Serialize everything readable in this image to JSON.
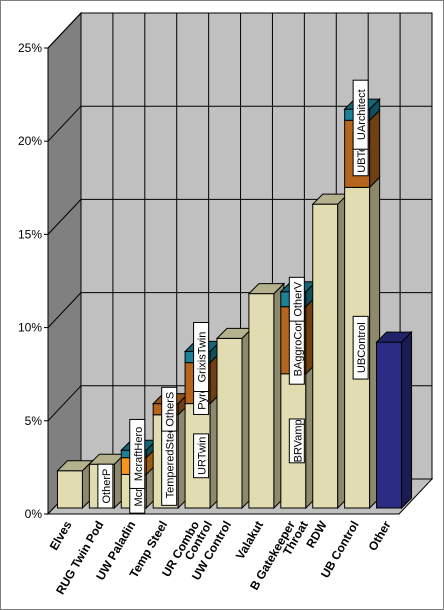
{
  "chart_data": {
    "type": "bar",
    "stacked": true,
    "three_d": true,
    "yaxis": {
      "min": 0,
      "max": 25,
      "step": 5,
      "format": "percent"
    },
    "grid": true,
    "legend": "none",
    "categories": [
      {
        "label": "Elves",
        "segments": [
          {
            "value": 2.0,
            "color": "#e1ddb0"
          }
        ]
      },
      {
        "label": "RUG Twin Pod",
        "segments": [
          {
            "value": 2.35,
            "color": "#e1ddb0",
            "label": "OtherP"
          }
        ]
      },
      {
        "label": "UW Paladin",
        "segments": [
          {
            "value": 1.8,
            "color": "#e1ddb0",
            "label": "Mcraft"
          },
          {
            "value": 0.9,
            "color": "#f7941d"
          },
          {
            "value": 0.4,
            "color": "#1a8196",
            "label": "McraftHero"
          }
        ]
      },
      {
        "label": "Temp Steel",
        "segments": [
          {
            "value": 5.0,
            "color": "#e1ddb0",
            "label": "TemperedSteel"
          },
          {
            "value": 0.6,
            "color": "#b5651d",
            "label": "OtherS"
          }
        ]
      },
      {
        "label": "UR Combo Control",
        "segments": [
          {
            "value": 5.6,
            "color": "#e1ddb0",
            "label": "URTwin"
          },
          {
            "value": 2.2,
            "color": "#b5651d",
            "label": "PyroAscen"
          },
          {
            "value": 0.6,
            "color": "#1a8196",
            "label": "GrixisTwin"
          }
        ]
      },
      {
        "label": "UW Control",
        "segments": [
          {
            "value": 9.1,
            "color": "#e1ddb0"
          }
        ]
      },
      {
        "label": "Valakut",
        "segments": [
          {
            "value": 11.5,
            "color": "#e1ddb0"
          }
        ]
      },
      {
        "label": "B Gatekeeper Throat",
        "segments": [
          {
            "value": 7.2,
            "color": "#e1ddb0",
            "label": "BRVamp"
          },
          {
            "value": 3.6,
            "color": "#b5651d",
            "label": "BAggroControl"
          },
          {
            "value": 0.8,
            "color": "#1a8196",
            "label": "OtherV"
          }
        ]
      },
      {
        "label": "RDW",
        "segments": [
          {
            "value": 16.3,
            "color": "#e1ddb0"
          }
        ]
      },
      {
        "label": "UB Control",
        "segments": [
          {
            "value": 17.2,
            "color": "#e1ddb0",
            "label": "UBControl"
          },
          {
            "value": 3.6,
            "color": "#b5651d",
            "label": "UBTezz"
          },
          {
            "value": 0.6,
            "color": "#1a8196",
            "label": "UArchitect"
          }
        ]
      },
      {
        "label": "Other",
        "segments": [
          {
            "value": 8.9,
            "color": "#2b2d84"
          }
        ]
      }
    ]
  }
}
